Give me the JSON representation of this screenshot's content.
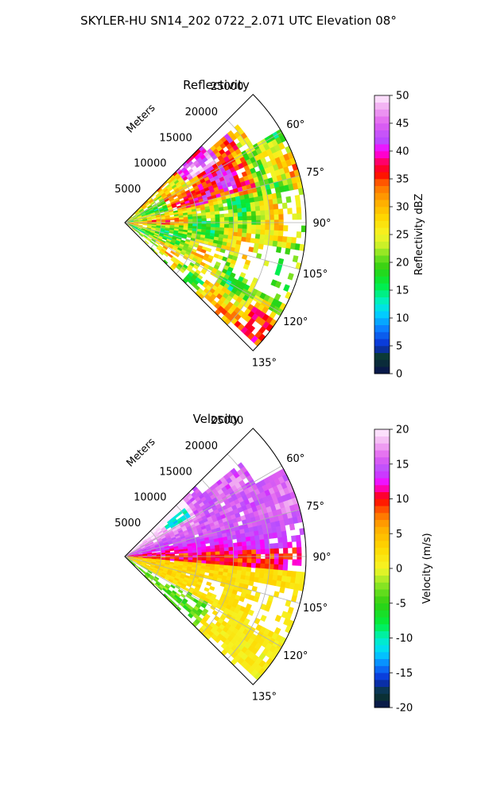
{
  "figure": {
    "suptitle": "SKYLER-HU  SN14_202  0722_2.071 UTC Elevation 08°"
  },
  "chart_data": [
    {
      "type": "heatmap",
      "projection": "polar-sector",
      "title": "Reflectivity",
      "radial_label": "Meters",
      "r_ticks": [
        5000,
        10000,
        15000,
        20000,
        25000
      ],
      "r_range": [
        0,
        25000
      ],
      "theta_ticks": [
        "60°",
        "75°",
        "90°",
        "105°",
        "120°",
        "135°"
      ],
      "theta_tick_values": [
        60,
        75,
        90,
        105,
        120,
        135
      ],
      "theta_range": [
        45,
        135
      ],
      "grid": true,
      "colorbar": {
        "label": "Reflectivity dBZ",
        "range": [
          0,
          50
        ],
        "ticks": [
          0,
          5,
          10,
          15,
          20,
          25,
          30,
          35,
          40,
          45,
          50
        ],
        "stops": [
          {
            "v": 0,
            "c": "#081050"
          },
          {
            "v": 3,
            "c": "#0b3b2c"
          },
          {
            "v": 5,
            "c": "#0a2bd0"
          },
          {
            "v": 8,
            "c": "#0b7bff"
          },
          {
            "v": 11,
            "c": "#00d8ff"
          },
          {
            "v": 13,
            "c": "#00f0c0"
          },
          {
            "v": 16,
            "c": "#00ee40"
          },
          {
            "v": 19,
            "c": "#30d010"
          },
          {
            "v": 21,
            "c": "#70e020"
          },
          {
            "v": 23,
            "c": "#c8f028"
          },
          {
            "v": 25,
            "c": "#f5f525"
          },
          {
            "v": 28,
            "c": "#ffd800"
          },
          {
            "v": 31,
            "c": "#ffaa00"
          },
          {
            "v": 34,
            "c": "#ff6a00"
          },
          {
            "v": 36,
            "c": "#ff0000"
          },
          {
            "v": 38,
            "c": "#ff0060"
          },
          {
            "v": 40,
            "c": "#ff00ff"
          },
          {
            "v": 42,
            "c": "#b84dff"
          },
          {
            "v": 45,
            "c": "#e060f0"
          },
          {
            "v": 48,
            "c": "#f2b0f2"
          },
          {
            "v": 50,
            "c": "#fff0ff"
          }
        ]
      }
    },
    {
      "type": "heatmap",
      "projection": "polar-sector",
      "title": "Velocity",
      "radial_label": "Meters",
      "r_ticks": [
        5000,
        10000,
        15000,
        20000,
        25000
      ],
      "r_range": [
        0,
        25000
      ],
      "theta_ticks": [
        "60°",
        "75°",
        "90°",
        "105°",
        "120°",
        "135°"
      ],
      "theta_tick_values": [
        60,
        75,
        90,
        105,
        120,
        135
      ],
      "theta_range": [
        45,
        135
      ],
      "grid": true,
      "colorbar": {
        "label": "Velocity (m/s)",
        "range": [
          -20,
          20
        ],
        "ticks": [
          -20,
          -15,
          -10,
          -5,
          0,
          5,
          10,
          15,
          20
        ],
        "stops": [
          {
            "v": -20,
            "c": "#081050"
          },
          {
            "v": -18,
            "c": "#0b3b2c"
          },
          {
            "v": -16,
            "c": "#0a2bd0"
          },
          {
            "v": -14,
            "c": "#0b7bff"
          },
          {
            "v": -12,
            "c": "#00d8ff"
          },
          {
            "v": -10,
            "c": "#00f0c0"
          },
          {
            "v": -8,
            "c": "#00ee40"
          },
          {
            "v": -5,
            "c": "#30d010"
          },
          {
            "v": -3,
            "c": "#70e020"
          },
          {
            "v": -1,
            "c": "#c8f028"
          },
          {
            "v": 0,
            "c": "#f5f525"
          },
          {
            "v": 3,
            "c": "#ffd800"
          },
          {
            "v": 6,
            "c": "#ffaa00"
          },
          {
            "v": 8,
            "c": "#ff6a00"
          },
          {
            "v": 10,
            "c": "#ff0000"
          },
          {
            "v": 11,
            "c": "#ff0060"
          },
          {
            "v": 12,
            "c": "#ff00ff"
          },
          {
            "v": 14,
            "c": "#b84dff"
          },
          {
            "v": 16,
            "c": "#e060f0"
          },
          {
            "v": 18,
            "c": "#f2b0f2"
          },
          {
            "v": 20,
            "c": "#fff0ff"
          }
        ]
      }
    }
  ]
}
